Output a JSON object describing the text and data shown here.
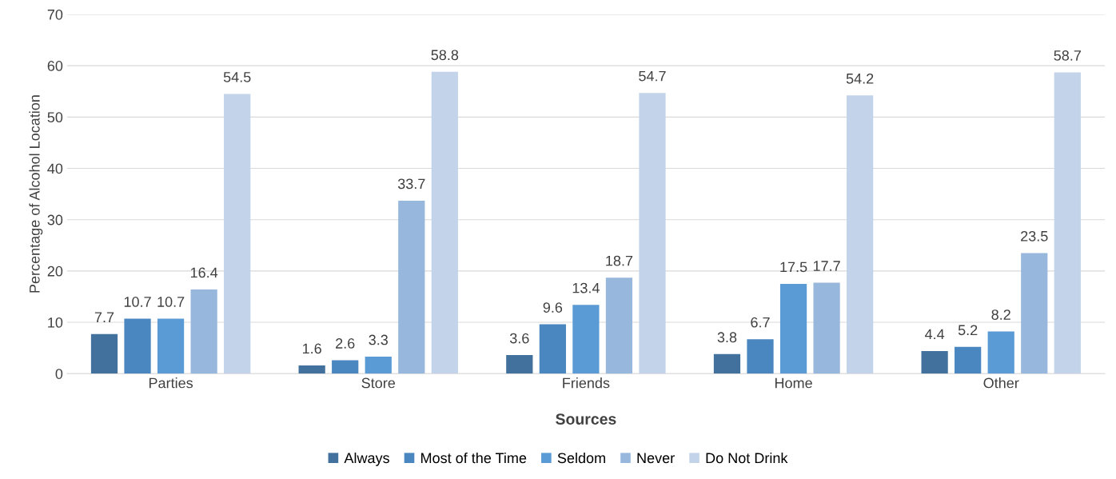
{
  "chart_data": {
    "type": "bar",
    "xlabel": "Sources",
    "ylabel": "Percentage of Alcohol Location",
    "categories": [
      "Parties",
      "Store",
      "Friends",
      "Home",
      "Other"
    ],
    "series": [
      {
        "name": "Always",
        "color": "#41719c",
        "values": [
          7.7,
          1.6,
          3.6,
          3.8,
          4.4
        ]
      },
      {
        "name": "Most of the Time",
        "color": "#4a86bf",
        "values": [
          10.7,
          2.6,
          9.6,
          6.7,
          5.2
        ]
      },
      {
        "name": "Seldom",
        "color": "#5b9bd5",
        "values": [
          10.7,
          3.3,
          13.4,
          17.5,
          8.2
        ]
      },
      {
        "name": "Never",
        "color": "#98b7dc",
        "values": [
          16.4,
          33.7,
          18.7,
          17.7,
          23.5
        ]
      },
      {
        "name": "Do Not Drink",
        "color": "#c3d3e9",
        "values": [
          54.5,
          58.8,
          54.7,
          54.2,
          58.7
        ]
      }
    ],
    "ylim": [
      0,
      70
    ],
    "yticks": [
      0,
      10,
      20,
      30,
      40,
      50,
      60,
      70
    ],
    "grid": "y",
    "legend": "bottom",
    "data_labels": true
  }
}
